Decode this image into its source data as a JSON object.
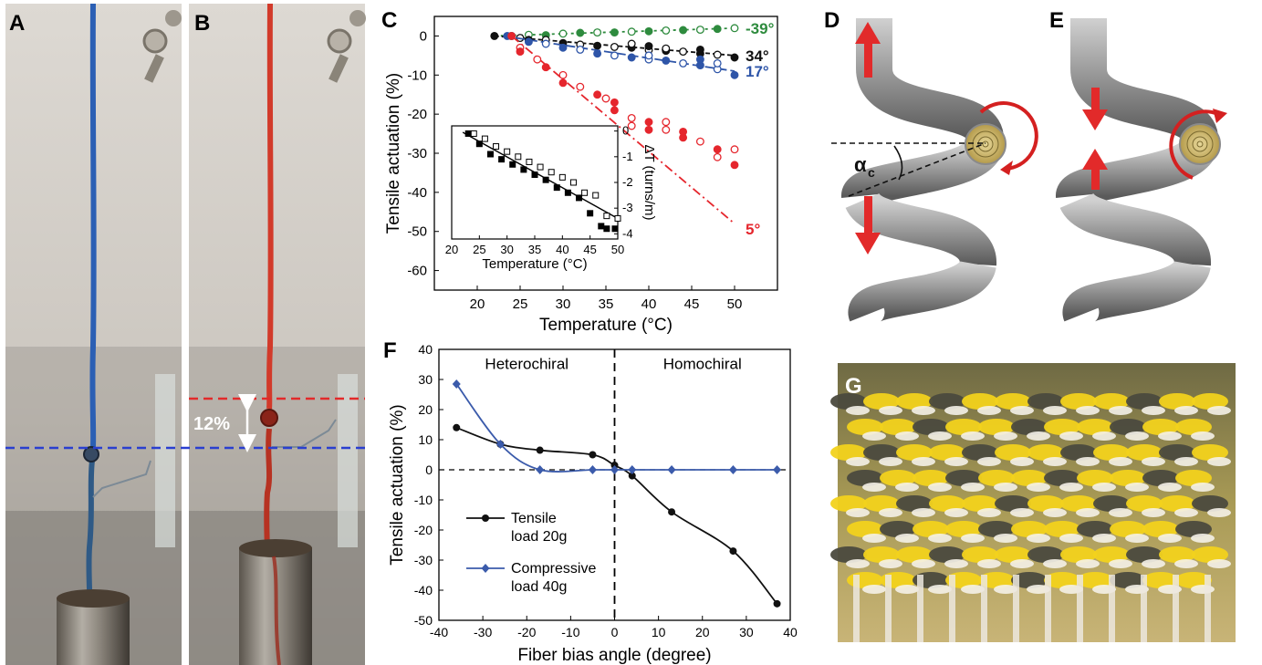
{
  "panels": {
    "A": "A",
    "B": "B",
    "C": "C",
    "D": "D",
    "E": "E",
    "F": "F",
    "G": "G"
  },
  "photo_b_label": "12%",
  "coil_angle_symbol": "α",
  "coil_angle_subscript": "c",
  "colors": {
    "blue_fiber": "#2b5fb4",
    "red_fiber": "#d23a2a",
    "green": "#2e8b3e",
    "black": "#111111",
    "blue": "#2e55a8",
    "red": "#e5262d",
    "compressive": "#3b5bab"
  },
  "chart_data": [
    {
      "id": "C-main",
      "type": "scatter",
      "xlabel": "Temperature (°C)",
      "ylabel": "Tensile actuation (%)",
      "xlim": [
        15,
        55
      ],
      "ylim": [
        -65,
        5
      ],
      "xticks": [
        20,
        25,
        30,
        35,
        40,
        45,
        50
      ],
      "yticks": [
        0,
        -10,
        -20,
        -30,
        -40,
        -50,
        -60
      ],
      "series": [
        {
          "name": "-39°",
          "color": "#2e8b3e",
          "fit": [
            [
              22,
              0
            ],
            [
              50,
              2
            ]
          ],
          "points": [
            [
              24,
              0
            ],
            [
              26,
              0.3
            ],
            [
              28,
              0.2
            ],
            [
              30,
              0.6
            ],
            [
              32,
              0.8
            ],
            [
              34,
              0.9
            ],
            [
              36,
              0.9
            ],
            [
              38,
              1.1
            ],
            [
              40,
              1.2
            ],
            [
              42,
              1.4
            ],
            [
              44,
              1.5
            ],
            [
              46,
              1.6
            ],
            [
              48,
              1.8
            ],
            [
              50,
              2
            ]
          ]
        },
        {
          "name": "34°",
          "color": "#111111",
          "fit": [
            [
              22,
              0
            ],
            [
              50,
              -5
            ]
          ],
          "points": [
            [
              22,
              0
            ],
            [
              25,
              -0.5
            ],
            [
              26,
              -1
            ],
            [
              28,
              -1
            ],
            [
              30,
              -1.8
            ],
            [
              32,
              -2.2
            ],
            [
              34,
              -2.5
            ],
            [
              36,
              -2.8
            ],
            [
              38,
              -3
            ],
            [
              40,
              -3.6
            ],
            [
              42,
              -3.8
            ],
            [
              44,
              -4
            ],
            [
              46,
              -4.5
            ],
            [
              48,
              -4.8
            ],
            [
              50,
              -5.5
            ],
            [
              38,
              -2
            ],
            [
              40,
              -2.6
            ],
            [
              42,
              -3.2
            ],
            [
              46,
              -3.5
            ]
          ]
        },
        {
          "name": "17°",
          "color": "#2e55a8",
          "fit": [
            [
              23,
              0
            ],
            [
              50,
              -9
            ]
          ],
          "points": [
            [
              23.5,
              0
            ],
            [
              24,
              0
            ],
            [
              26,
              -1.5
            ],
            [
              28,
              -2
            ],
            [
              30,
              -3
            ],
            [
              32,
              -3.5
            ],
            [
              34,
              -4.5
            ],
            [
              36,
              -5
            ],
            [
              38,
              -5.5
            ],
            [
              40,
              -6
            ],
            [
              42,
              -6.3
            ],
            [
              44,
              -7
            ],
            [
              46,
              -7.5
            ],
            [
              48,
              -8.5
            ],
            [
              50,
              -10
            ],
            [
              40,
              -5
            ],
            [
              46,
              -6
            ],
            [
              48,
              -7
            ]
          ]
        },
        {
          "name": "5°",
          "color": "#e5262d",
          "fit": [
            [
              24,
              0
            ],
            [
              50,
              -48
            ]
          ],
          "points": [
            [
              24,
              0
            ],
            [
              25,
              -3
            ],
            [
              25,
              -4
            ],
            [
              27,
              -6
            ],
            [
              28,
              -8
            ],
            [
              30,
              -10
            ],
            [
              30,
              -12
            ],
            [
              32,
              -13
            ],
            [
              34,
              -15
            ],
            [
              35,
              -16
            ],
            [
              36,
              -19
            ],
            [
              38,
              -21
            ],
            [
              40,
              -22
            ],
            [
              42,
              -24
            ],
            [
              44,
              -26
            ],
            [
              46,
              -27
            ],
            [
              48,
              -29
            ],
            [
              48,
              -31
            ],
            [
              50,
              -33
            ],
            [
              50,
              -29
            ],
            [
              44,
              -24.5
            ],
            [
              42,
              -22
            ],
            [
              40,
              -24
            ],
            [
              38,
              -23
            ],
            [
              36,
              -17
            ]
          ]
        }
      ]
    },
    {
      "id": "C-inset",
      "type": "scatter",
      "xlabel": "Temperature (°C)",
      "ylabel": "ΔT (turns/m)",
      "xlim": [
        20,
        50
      ],
      "ylim": [
        -4.2,
        0.2
      ],
      "xticks": [
        20,
        25,
        30,
        35,
        40,
        45,
        50
      ],
      "yticks": [
        0,
        -1,
        -2,
        -3,
        -4
      ],
      "fit": [
        [
          22,
          -0.05
        ],
        [
          50,
          -3.4
        ]
      ],
      "series": [
        {
          "name": "filled",
          "filled": true,
          "points": [
            [
              23,
              -0.1
            ],
            [
              25,
              -0.5
            ],
            [
              27,
              -0.9
            ],
            [
              29,
              -1.1
            ],
            [
              31,
              -1.3
            ],
            [
              33,
              -1.5
            ],
            [
              35,
              -1.7
            ],
            [
              37,
              -1.9
            ],
            [
              39,
              -2.2
            ],
            [
              41,
              -2.4
            ],
            [
              43,
              -2.6
            ],
            [
              45,
              -3.2
            ],
            [
              47,
              -3.7
            ],
            [
              48,
              -3.8
            ],
            [
              49.5,
              -3.8
            ]
          ]
        },
        {
          "name": "open",
          "filled": false,
          "points": [
            [
              24,
              -0.1
            ],
            [
              26,
              -0.3
            ],
            [
              28,
              -0.6
            ],
            [
              30,
              -0.8
            ],
            [
              32,
              -1.0
            ],
            [
              34,
              -1.2
            ],
            [
              36,
              -1.4
            ],
            [
              38,
              -1.6
            ],
            [
              40,
              -1.8
            ],
            [
              42,
              -2.0
            ],
            [
              44,
              -2.4
            ],
            [
              46,
              -2.5
            ],
            [
              48,
              -3.3
            ],
            [
              50,
              -3.4
            ]
          ]
        }
      ]
    },
    {
      "id": "F",
      "type": "line",
      "xlabel": "Fiber bias angle (degree)",
      "ylabel": "Tensile actuation (%)",
      "xlim": [
        -40,
        40
      ],
      "ylim": [
        -50,
        40
      ],
      "xticks": [
        -40,
        -30,
        -20,
        -10,
        0,
        10,
        20,
        30,
        40
      ],
      "yticks": [
        40,
        30,
        20,
        10,
        0,
        -10,
        -20,
        -30,
        -40,
        -50
      ],
      "region_labels": [
        "Heterochiral",
        "Homochiral"
      ],
      "series": [
        {
          "name": "Tensile load 20g",
          "legend_line1": "Tensile",
          "legend_line2": "load 20g",
          "color": "#111111",
          "marker": "circle",
          "x": [
            -36,
            -26,
            -17,
            -5,
            0,
            4,
            13,
            27,
            37
          ],
          "y": [
            14,
            8.5,
            6.5,
            5,
            1.5,
            -2,
            -14,
            -27,
            -44.5
          ]
        },
        {
          "name": "Compressive load 40g",
          "legend_line1": "Compressive",
          "legend_line2": "load 40g",
          "color": "#3b5bab",
          "marker": "diamond",
          "x": [
            -36,
            -26,
            -17,
            -5,
            0,
            4,
            13,
            27,
            37
          ],
          "y": [
            28.5,
            8.5,
            0,
            0,
            0,
            0,
            0,
            0,
            0
          ]
        }
      ]
    }
  ]
}
